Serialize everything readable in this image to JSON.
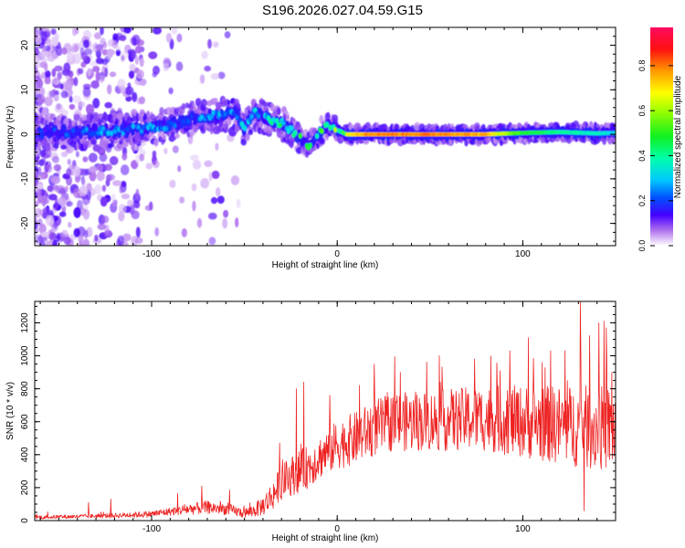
{
  "title": "S196.2026.027.04.59.G15",
  "chart_data": [
    {
      "type": "heatmap",
      "title": "S196.2026.027.04.59.G15",
      "xlabel": "Height of straight line (km)",
      "ylabel": "Frequency (Hz)",
      "xlim": [
        -163,
        150
      ],
      "ylim": [
        -25,
        24
      ],
      "xticks": [
        -100,
        0,
        100
      ],
      "yticks": [
        -20,
        -10,
        0,
        10,
        20
      ],
      "colorbar": {
        "label": "Normalized spectral amplitude",
        "range": [
          0,
          0.97
        ],
        "ticks": [
          0.0,
          0.2,
          0.4,
          0.6,
          0.8
        ],
        "colormap": [
          "#ffffff",
          "#8a2be2",
          "#0000ff",
          "#00ffff",
          "#00ff00",
          "#ffff00",
          "#ff8000",
          "#ff0000",
          "#ff1493"
        ]
      },
      "frequency_track": {
        "height_km": [
          -160,
          -140,
          -120,
          -100,
          -90,
          -80,
          -70,
          -60,
          -55,
          -50,
          -45,
          -40,
          -35,
          -30,
          -25,
          -20,
          -15,
          -12,
          -8,
          -5,
          -2,
          0,
          5,
          10,
          20,
          40,
          60,
          80,
          100,
          120,
          140,
          148
        ],
        "frequency_hz": [
          0.5,
          0.5,
          0.8,
          1.5,
          2,
          3.5,
          4,
          4.5,
          5,
          1,
          5,
          4,
          3,
          2.5,
          1,
          -1,
          -2.5,
          -1,
          1,
          2,
          1.5,
          1,
          0,
          0,
          0,
          0,
          0,
          0,
          0.3,
          0.5,
          0.2,
          0.3
        ],
        "peak_amplitude": [
          0.2,
          0.25,
          0.3,
          0.3,
          0.3,
          0.3,
          0.3,
          0.35,
          0.3,
          0.35,
          0.35,
          0.4,
          0.45,
          0.45,
          0.45,
          0.5,
          0.5,
          0.5,
          0.55,
          0.6,
          0.6,
          0.65,
          0.75,
          0.85,
          0.9,
          0.9,
          0.9,
          0.85,
          0.55,
          0.45,
          0.4,
          0.35
        ]
      }
    },
    {
      "type": "line",
      "xlabel": "Height of straight line (km)",
      "ylabel": "SNR (10 * v/v)",
      "xlim": [
        -163,
        150
      ],
      "ylim": [
        0,
        1330
      ],
      "xticks": [
        -100,
        0,
        100
      ],
      "yticks": [
        0,
        200,
        400,
        600,
        800,
        1000,
        1200
      ],
      "color": "#ee2222",
      "series": [
        {
          "name": "SNR",
          "x": [
            -163,
            -140,
            -120,
            -100,
            -90,
            -80,
            -70,
            -60,
            -50,
            -45,
            -40,
            -35,
            -30,
            -25,
            -20,
            -15,
            -10,
            -5,
            0,
            10,
            20,
            30,
            40,
            60,
            80,
            100,
            120,
            140,
            150
          ],
          "y": [
            20,
            25,
            30,
            40,
            55,
            70,
            80,
            70,
            45,
            60,
            90,
            150,
            230,
            270,
            300,
            330,
            380,
            420,
            460,
            500,
            560,
            600,
            600,
            610,
            620,
            600,
            580,
            560,
            560
          ],
          "noise_amplitude": [
            12,
            12,
            15,
            20,
            25,
            35,
            40,
            35,
            30,
            40,
            60,
            90,
            110,
            120,
            130,
            130,
            130,
            140,
            150,
            160,
            170,
            180,
            180,
            190,
            200,
            220,
            240,
            260,
            260
          ],
          "spikes": [
            {
              "x": -134,
              "y": 110
            },
            {
              "x": -122,
              "y": 130
            },
            {
              "x": -86,
              "y": 165
            },
            {
              "x": -73,
              "y": 210
            },
            {
              "x": -58,
              "y": 185
            },
            {
              "x": -31,
              "y": 470
            },
            {
              "x": -22,
              "y": 800
            },
            {
              "x": -18,
              "y": 840
            },
            {
              "x": -4,
              "y": 760
            },
            {
              "x": 12,
              "y": 820
            },
            {
              "x": 20,
              "y": 950
            },
            {
              "x": 34,
              "y": 900
            },
            {
              "x": 55,
              "y": 1000
            },
            {
              "x": 74,
              "y": 980
            },
            {
              "x": 93,
              "y": 1030
            },
            {
              "x": 103,
              "y": 1110
            },
            {
              "x": 115,
              "y": 1030
            },
            {
              "x": 131,
              "y": 1330
            },
            {
              "x": 141,
              "y": 1200
            },
            {
              "x": 145,
              "y": 1170
            },
            {
              "x": 148,
              "y": 900
            },
            {
              "x": 133,
              "y": 60
            },
            {
              "x": 141,
              "y": 70
            }
          ]
        }
      ]
    }
  ]
}
